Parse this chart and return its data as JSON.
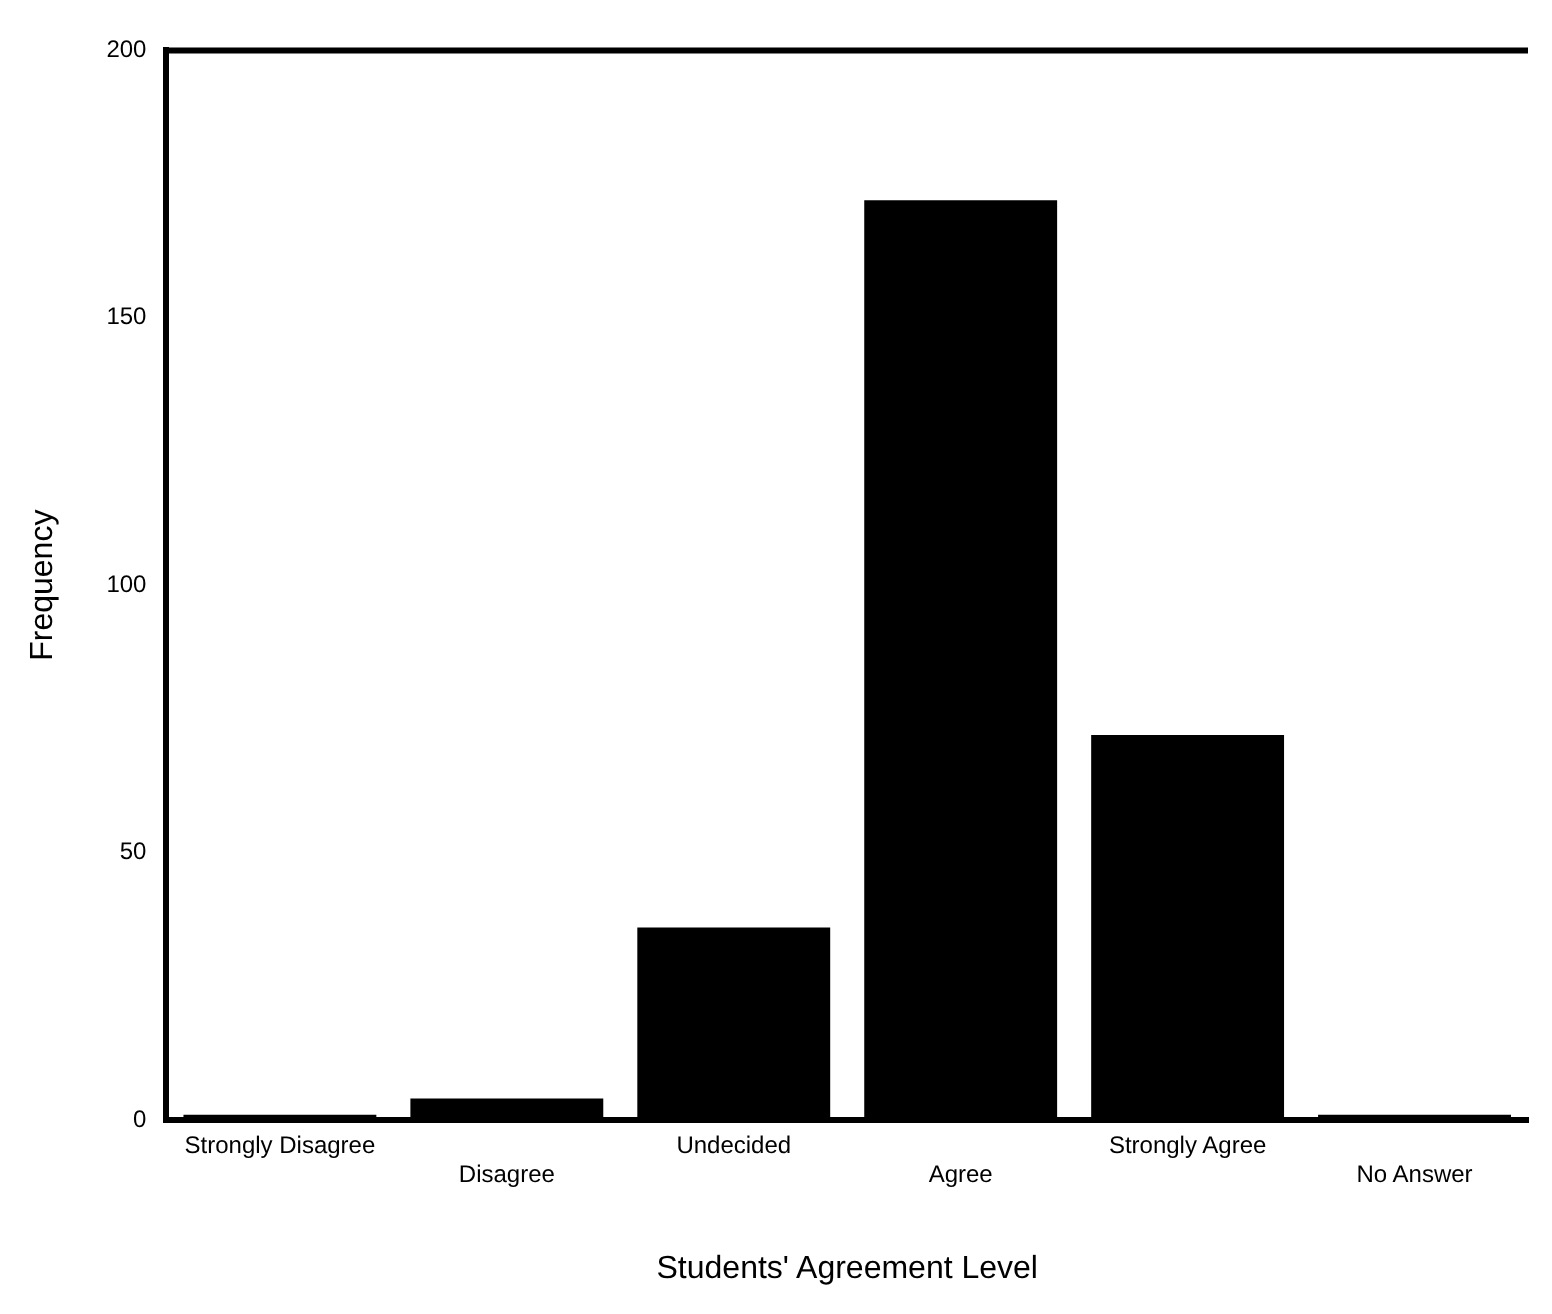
{
  "chart_data": {
    "type": "bar",
    "xlabel": "Students' Agreement Level",
    "ylabel": "Frequency",
    "categories": [
      "Strongly Disagree",
      "Disagree",
      "Undecided",
      "Agree",
      "Strongly Agree",
      "No Answer"
    ],
    "values": [
      1,
      4,
      36,
      172,
      72,
      1
    ],
    "color": "#000000",
    "ylim": [
      0,
      200
    ],
    "yticks": [
      0,
      50,
      100,
      150,
      200
    ],
    "grid": false,
    "legend": false
  }
}
